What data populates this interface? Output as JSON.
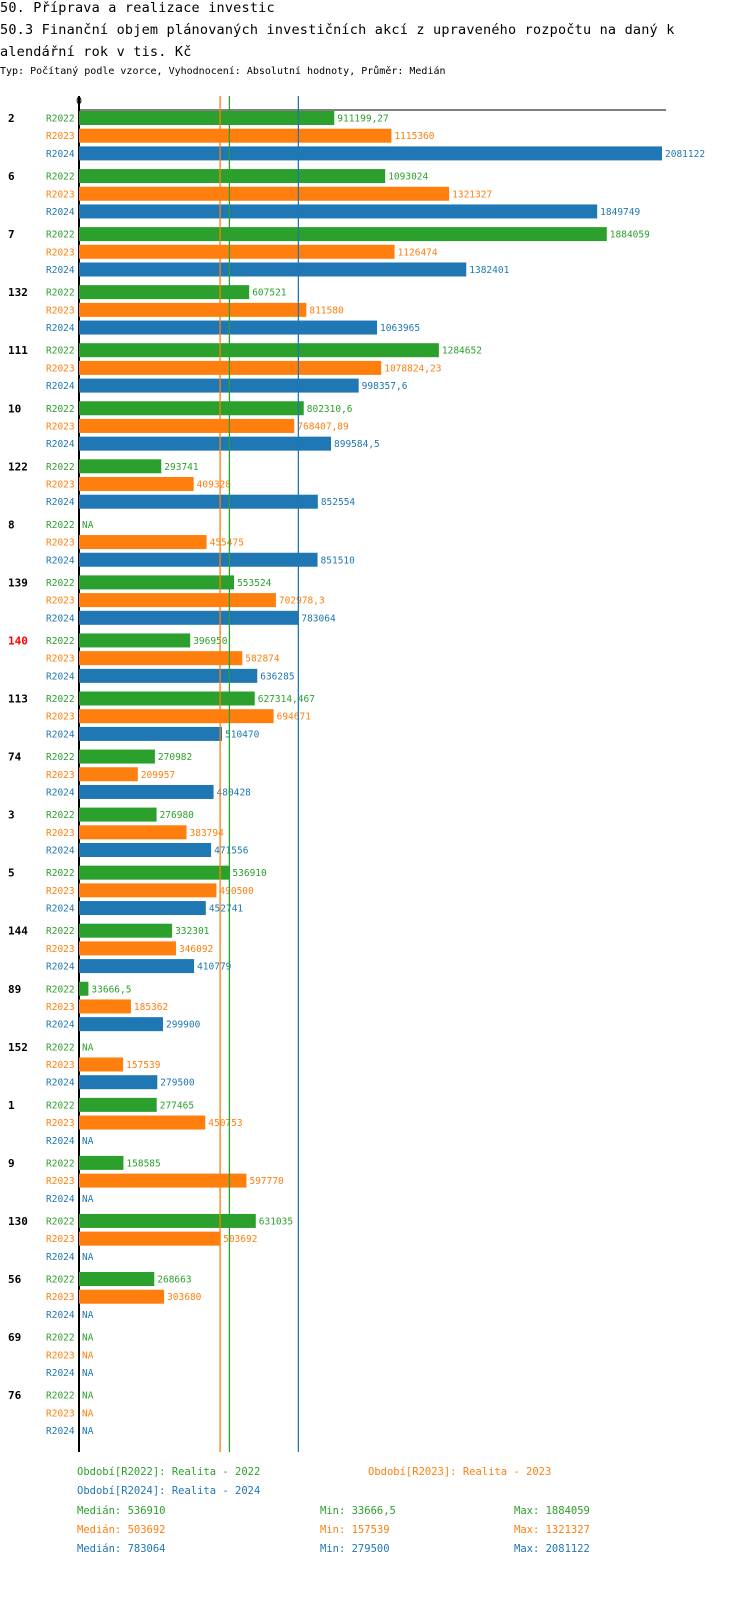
{
  "title": {
    "line1": "50. Příprava a realizace investic",
    "line2": "50.3 Finanční objem plánovaných investičních akcí z upraveného rozpočtu na daný k",
    "line3": "alendářní rok v tis. Kč"
  },
  "subtitle": "Typ: Počítaný podle vzorce, Vyhodnocení: Absolutní hodnoty, Průměr: Medián",
  "colors": {
    "R2022": "#2ca02c",
    "R2023": "#ff7f0e",
    "R2024": "#1f77b4",
    "highlight": "#ff0000"
  },
  "chart_data": {
    "type": "bar",
    "orientation": "horizontal",
    "axis_zero_label": "0",
    "xlim": [
      0,
      2081122
    ],
    "series_names": [
      "R2022",
      "R2023",
      "R2024"
    ],
    "highlight_category": "140",
    "groups": [
      {
        "label": "2",
        "values": [
          911199.27,
          1115360,
          2081122
        ],
        "labels": [
          "911199,27",
          "1115360",
          "2081122"
        ]
      },
      {
        "label": "6",
        "values": [
          1093024,
          1321327,
          1849749
        ],
        "labels": [
          "1093024",
          "1321327",
          "1849749"
        ]
      },
      {
        "label": "7",
        "values": [
          1884059,
          1126474,
          1382401
        ],
        "labels": [
          "1884059",
          "1126474",
          "1382401"
        ]
      },
      {
        "label": "132",
        "values": [
          607521,
          811580,
          1063965
        ],
        "labels": [
          "607521",
          "811580",
          "1063965"
        ]
      },
      {
        "label": "111",
        "values": [
          1284652,
          1078824.23,
          998357.6
        ],
        "labels": [
          "1284652",
          "1078824,23",
          "998357,6"
        ]
      },
      {
        "label": "10",
        "values": [
          802310.6,
          768407.89,
          899584.5
        ],
        "labels": [
          "802310,6",
          "768407,89",
          "899584,5"
        ]
      },
      {
        "label": "122",
        "values": [
          293741,
          409328,
          852554
        ],
        "labels": [
          "293741",
          "409328",
          "852554"
        ]
      },
      {
        "label": "8",
        "values": [
          null,
          455475,
          851510
        ],
        "labels": [
          "NA",
          "455475",
          "851510"
        ]
      },
      {
        "label": "139",
        "values": [
          553524,
          702978.3,
          783064
        ],
        "labels": [
          "553524",
          "702978,3",
          "783064"
        ]
      },
      {
        "label": "140",
        "values": [
          396950,
          582874,
          636285
        ],
        "labels": [
          "396950",
          "582874",
          "636285"
        ]
      },
      {
        "label": "113",
        "values": [
          627314.467,
          694671,
          510470
        ],
        "labels": [
          "627314,467",
          "694671",
          "510470"
        ]
      },
      {
        "label": "74",
        "values": [
          270982,
          209957,
          480428
        ],
        "labels": [
          "270982",
          "209957",
          "480428"
        ]
      },
      {
        "label": "3",
        "values": [
          276980,
          383794,
          471556
        ],
        "labels": [
          "276980",
          "383794",
          "471556"
        ]
      },
      {
        "label": "5",
        "values": [
          536910,
          490500,
          452741
        ],
        "labels": [
          "536910",
          "490500",
          "452741"
        ]
      },
      {
        "label": "144",
        "values": [
          332301,
          346092,
          410779
        ],
        "labels": [
          "332301",
          "346092",
          "410779"
        ]
      },
      {
        "label": "89",
        "values": [
          33666.5,
          185362,
          299900
        ],
        "labels": [
          "33666,5",
          "185362",
          "299900"
        ]
      },
      {
        "label": "152",
        "values": [
          null,
          157539,
          279500
        ],
        "labels": [
          "NA",
          "157539",
          "279500"
        ]
      },
      {
        "label": "1",
        "values": [
          277465,
          450753,
          null
        ],
        "labels": [
          "277465",
          "450753",
          "NA"
        ]
      },
      {
        "label": "9",
        "values": [
          158585,
          597770,
          null
        ],
        "labels": [
          "158585",
          "597770",
          "NA"
        ]
      },
      {
        "label": "130",
        "values": [
          631035,
          503692,
          null
        ],
        "labels": [
          "631035",
          "503692",
          "NA"
        ]
      },
      {
        "label": "56",
        "values": [
          268663,
          303680,
          null
        ],
        "labels": [
          "268663",
          "303680",
          "NA"
        ]
      },
      {
        "label": "69",
        "values": [
          null,
          null,
          null
        ],
        "labels": [
          "NA",
          "NA",
          "NA"
        ]
      },
      {
        "label": "76",
        "values": [
          null,
          null,
          null
        ],
        "labels": [
          "NA",
          "NA",
          "NA"
        ]
      }
    ],
    "median_lines": {
      "R2022": 536910,
      "R2023": 503692,
      "R2024": 783064
    }
  },
  "legend": {
    "period_2022": "Období[R2022]: Realita - 2022",
    "period_2023": "Období[R2023]: Realita - 2023",
    "period_2024": "Období[R2024]: Realita - 2024",
    "stats": [
      {
        "median": "Medián: 536910",
        "min": "Min: 33666,5",
        "max": "Max: 1884059"
      },
      {
        "median": "Medián: 503692",
        "min": "Min: 157539",
        "max": "Max: 1321327"
      },
      {
        "median": "Medián: 783064",
        "min": "Min: 279500",
        "max": "Max: 2081122"
      }
    ]
  }
}
